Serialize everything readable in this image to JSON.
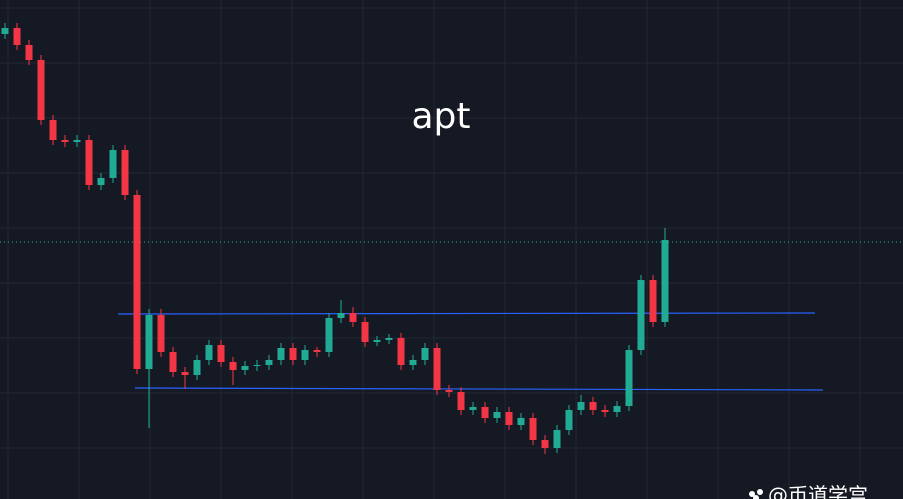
{
  "chart_data": {
    "type": "candlestick",
    "title": "apt",
    "watermark": "@币道学宫",
    "up_color": "#22ab94",
    "down_color": "#f23645",
    "ylim": [
      0,
      499
    ],
    "values": [
      [
        465,
        476,
        460,
        471
      ],
      [
        471,
        476,
        449,
        454
      ],
      [
        454,
        459,
        434,
        439
      ],
      [
        439,
        444,
        374,
        379
      ],
      [
        379,
        384,
        354,
        359
      ],
      [
        359,
        364,
        352,
        357
      ],
      [
        357,
        364,
        352,
        359
      ],
      [
        359,
        364,
        309,
        314
      ],
      [
        314,
        326,
        309,
        321
      ],
      [
        321,
        354,
        316,
        349
      ],
      [
        349,
        354,
        299,
        304
      ],
      [
        304,
        309,
        125,
        130
      ],
      [
        130,
        190,
        71,
        184
      ],
      [
        184,
        190,
        142,
        147
      ],
      [
        147,
        152,
        122,
        127
      ],
      [
        127,
        132,
        110,
        124
      ],
      [
        124,
        144,
        119,
        139
      ],
      [
        139,
        159,
        134,
        154
      ],
      [
        154,
        159,
        132,
        137
      ],
      [
        137,
        142,
        114,
        129
      ],
      [
        129,
        138,
        124,
        133
      ],
      [
        133,
        139,
        128,
        134
      ],
      [
        134,
        144,
        129,
        139
      ],
      [
        139,
        156,
        134,
        151
      ],
      [
        151,
        156,
        134,
        139
      ],
      [
        139,
        154,
        134,
        149
      ],
      [
        149,
        152,
        142,
        147
      ],
      [
        147,
        186,
        142,
        181
      ],
      [
        181,
        199,
        176,
        186
      ],
      [
        186,
        192,
        172,
        177
      ],
      [
        177,
        182,
        152,
        157
      ],
      [
        157,
        163,
        153,
        159
      ],
      [
        159,
        165,
        155,
        161
      ],
      [
        161,
        166,
        129,
        134
      ],
      [
        134,
        144,
        129,
        139
      ],
      [
        139,
        156,
        134,
        151
      ],
      [
        151,
        156,
        104,
        109
      ],
      [
        109,
        114,
        102,
        107
      ],
      [
        107,
        112,
        84,
        89
      ],
      [
        89,
        97,
        84,
        92
      ],
      [
        92,
        97,
        76,
        81
      ],
      [
        81,
        92,
        76,
        87
      ],
      [
        87,
        92,
        69,
        74
      ],
      [
        74,
        86,
        69,
        81
      ],
      [
        81,
        86,
        54,
        59
      ],
      [
        59,
        64,
        45,
        51
      ],
      [
        51,
        74,
        46,
        69
      ],
      [
        69,
        94,
        64,
        89
      ],
      [
        89,
        104,
        84,
        97
      ],
      [
        97,
        102,
        84,
        89
      ],
      [
        89,
        94,
        82,
        87
      ],
      [
        87,
        98,
        82,
        93
      ],
      [
        93,
        154,
        88,
        149
      ],
      [
        149,
        224,
        144,
        219
      ],
      [
        219,
        224,
        172,
        177
      ],
      [
        177,
        271,
        172,
        259
      ]
    ],
    "trend_lines": [
      {
        "color": "#2962ff",
        "values": [
          185,
          186
        ]
      },
      {
        "color": "#2962ff",
        "values": [
          111,
          109
        ]
      }
    ],
    "price_line": {
      "color": "#22ab94",
      "value": 257
    }
  }
}
